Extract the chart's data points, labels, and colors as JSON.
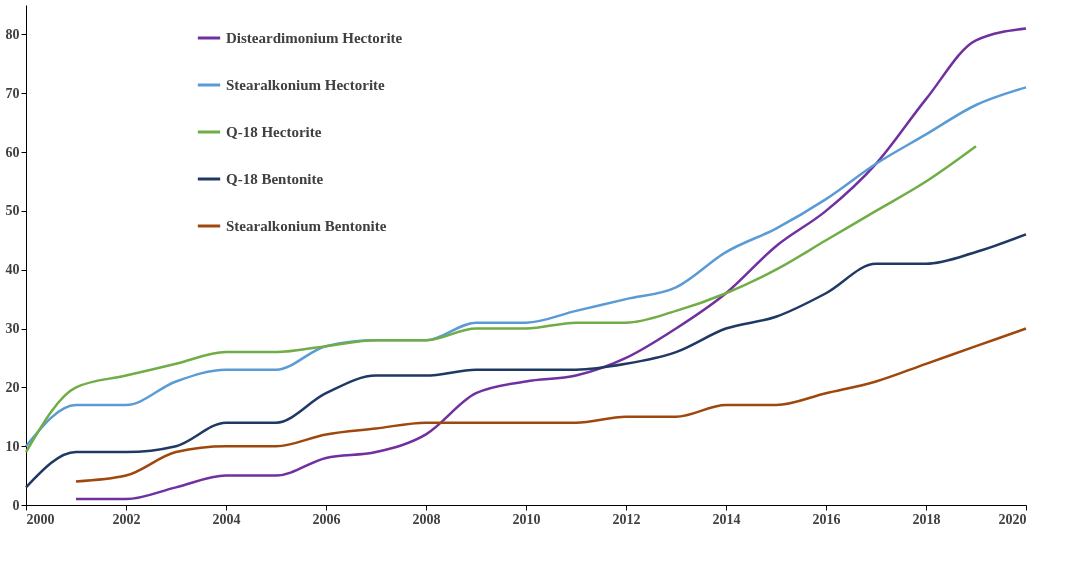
{
  "chart_data": {
    "type": "line",
    "x": [
      2000,
      2001,
      2002,
      2003,
      2004,
      2005,
      2006,
      2007,
      2008,
      2009,
      2010,
      2011,
      2012,
      2013,
      2014,
      2015,
      2016,
      2017,
      2018,
      2019,
      2020
    ],
    "series": [
      {
        "name": "Disteardimonium Hectorite",
        "color": "#7030a0",
        "values": [
          null,
          1,
          1,
          3,
          5,
          5,
          8,
          9,
          12,
          19,
          21,
          22,
          25,
          30,
          36,
          44,
          50,
          58,
          69,
          79,
          81
        ]
      },
      {
        "name": "Stearalkonium Hectorite",
        "color": "#5b9bd5",
        "values": [
          10,
          17,
          17,
          21,
          23,
          23,
          27,
          28,
          28,
          31,
          31,
          33,
          35,
          37,
          43,
          47,
          52,
          58,
          63,
          68,
          71
        ]
      },
      {
        "name": "Q-18 Hectorite",
        "color": "#70ad47",
        "values": [
          9,
          20,
          22,
          24,
          26,
          26,
          27,
          28,
          28,
          30,
          30,
          31,
          31,
          33,
          36,
          40,
          45,
          50,
          55,
          61,
          null
        ]
      },
      {
        "name": "Q-18 Bentonite",
        "color": "#203864",
        "values": [
          3,
          9,
          9,
          10,
          14,
          14,
          19,
          22,
          22,
          23,
          23,
          23,
          24,
          26,
          30,
          32,
          36,
          41,
          41,
          43,
          46
        ]
      },
      {
        "name": "Stearalkonium Bentonite",
        "color": "#9e480e",
        "values": [
          null,
          4,
          5,
          9,
          10,
          10,
          12,
          13,
          14,
          14,
          14,
          14,
          15,
          15,
          17,
          17,
          19,
          21,
          24,
          27,
          30
        ]
      }
    ],
    "xlim": [
      2000,
      2020
    ],
    "xticks": [
      2000,
      2002,
      2004,
      2006,
      2008,
      2010,
      2012,
      2014,
      2016,
      2018,
      2020
    ],
    "ylim": [
      0,
      85
    ],
    "yticks": [
      0,
      10,
      20,
      30,
      40,
      50,
      60,
      70,
      80
    ],
    "grid": false,
    "legend": "top left",
    "marker": "none",
    "line_style": "solid"
  }
}
